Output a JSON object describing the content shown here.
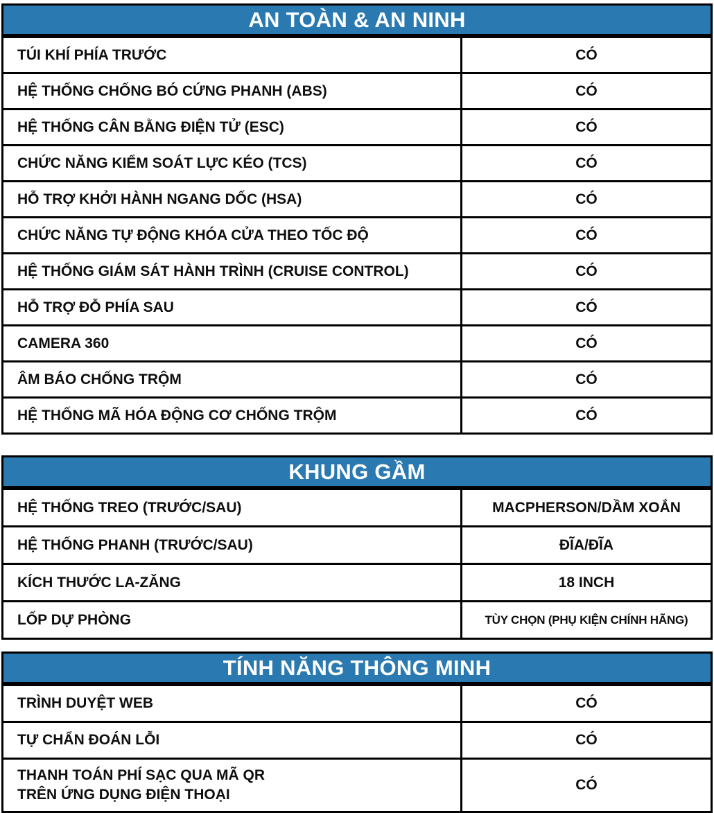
{
  "accent_color": "#2A79B0",
  "tables": [
    {
      "title": "AN TOÀN & AN NINH",
      "rows": [
        {
          "label": "TÚI KHÍ PHÍA TRƯỚC",
          "value": "CÓ"
        },
        {
          "label": "HỆ THỐNG CHỐNG BÓ CỨNG PHANH (ABS)",
          "value": "CÓ"
        },
        {
          "label": "HỆ THỐNG CÂN BẰNG ĐIỆN TỬ (ESC)",
          "value": "CÓ"
        },
        {
          "label": "CHỨC NĂNG KIỂM SOÁT LỰC KÉO (TCS)",
          "value": "CÓ"
        },
        {
          "label": "HỖ TRỢ KHỞI HÀNH NGANG DỐC (HSA)",
          "value": "CÓ"
        },
        {
          "label": "CHỨC NĂNG TỰ ĐỘNG KHÓA CỬA THEO TỐC ĐỘ",
          "value": "CÓ"
        },
        {
          "label": "HỆ THỐNG GIÁM SÁT HÀNH TRÌNH (CRUISE CONTROL)",
          "value": "CÓ"
        },
        {
          "label": "HỖ TRỢ ĐỖ PHÍA SAU",
          "value": "CÓ"
        },
        {
          "label": "CAMERA 360",
          "value": "CÓ"
        },
        {
          "label": "ÂM BÁO CHỐNG TRỘM",
          "value": "CÓ"
        },
        {
          "label": "HỆ THỐNG MÃ HÓA ĐỘNG CƠ CHỐNG TRỘM",
          "value": "CÓ"
        }
      ]
    },
    {
      "title": "KHUNG GẦM",
      "rows": [
        {
          "label": "HỆ THỐNG TREO (TRƯỚC/SAU)",
          "value": "MACPHERSON/DẦM XOẮN"
        },
        {
          "label": "HỆ THỐNG PHANH (TRƯỚC/SAU)",
          "value": "ĐĨA/ĐĨA"
        },
        {
          "label": "KÍCH THƯỚC LA-ZĂNG",
          "value": "18 INCH"
        },
        {
          "label": "LỐP DỰ PHÒNG",
          "value": "TÙY CHỌN (PHỤ KIỆN CHÍNH HÃNG)"
        }
      ]
    },
    {
      "title": "TÍNH NĂNG THÔNG MINH",
      "rows": [
        {
          "label": "TRÌNH DUYỆT WEB",
          "value": "CÓ"
        },
        {
          "label": "TỰ CHẨN ĐOÁN LỖI",
          "value": "CÓ"
        },
        {
          "label": "THANH TOÁN PHÍ SẠC QUA MÃ QR\nTRÊN ỨNG DỤNG ĐIỆN THOẠI",
          "value": "CÓ"
        }
      ]
    }
  ]
}
